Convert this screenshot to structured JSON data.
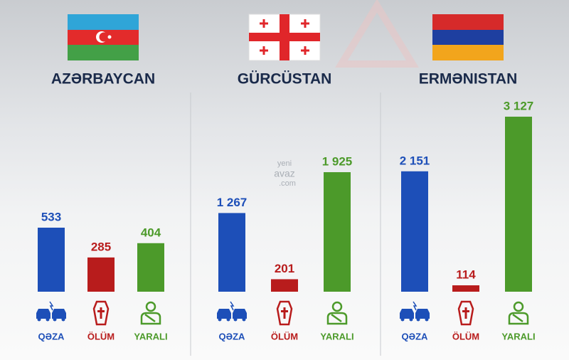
{
  "chart_data": [
    {
      "type": "bar",
      "title": "AZƏRBAYCAN",
      "categories": [
        "QƏZA",
        "ÖLÜM",
        "YARALI"
      ],
      "values": [
        533,
        285,
        404
      ],
      "value_labels": [
        "533",
        "285",
        "404"
      ],
      "colors": [
        "#1d4fb8",
        "#b81c1c",
        "#4c9a2a"
      ]
    },
    {
      "type": "bar",
      "title": "GÜRCÜSTAN",
      "categories": [
        "QƏZA",
        "ÖLÜM",
        "YARALI"
      ],
      "values": [
        1267,
        201,
        1925
      ],
      "value_labels": [
        "1 267",
        "201",
        "1 925"
      ],
      "colors": [
        "#1d4fb8",
        "#b81c1c",
        "#4c9a2a"
      ]
    },
    {
      "type": "bar",
      "title": "ERMƏNISTAN",
      "categories": [
        "QƏZA",
        "ÖLÜM",
        "YARALI"
      ],
      "values": [
        2151,
        114,
        3127
      ],
      "value_labels": [
        "2 151",
        "114",
        "3 127"
      ],
      "colors": [
        "#1d4fb8",
        "#b81c1c",
        "#4c9a2a"
      ]
    }
  ],
  "watermark": [
    "yeni",
    "avaz",
    ".com"
  ]
}
